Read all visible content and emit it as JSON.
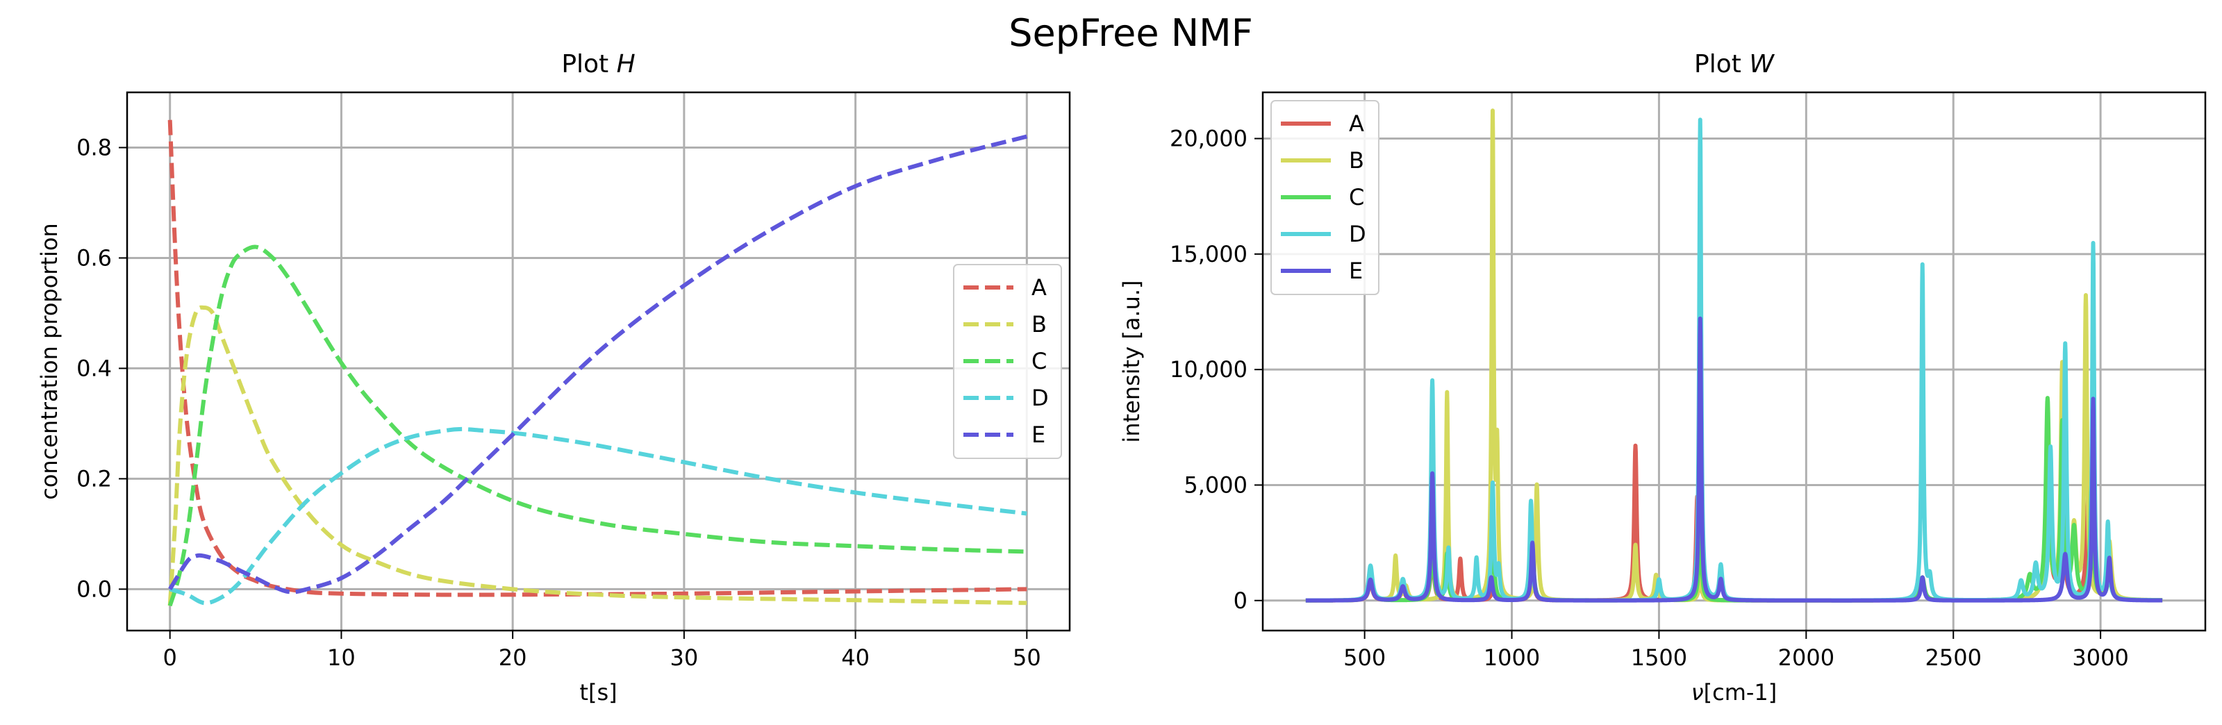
{
  "suptitle": "SepFree NMF",
  "colors": {
    "A": "#db5e56",
    "B": "#d4d95c",
    "C": "#56db5e",
    "D": "#56d3db",
    "E": "#5e56db",
    "grid": "#b0b0b0",
    "axis": "#000000"
  },
  "chart_data": [
    {
      "type": "line",
      "title_prefix": "Plot ",
      "title_var": "H",
      "xlabel": "t[s]",
      "ylabel": "concentration proportion",
      "xlim": [
        -2.5,
        52.5
      ],
      "ylim": [
        -0.075,
        0.9
      ],
      "xticks": [
        0,
        10,
        20,
        30,
        40,
        50
      ],
      "xtick_labels": [
        "0",
        "10",
        "20",
        "30",
        "40",
        "50"
      ],
      "yticks": [
        0.0,
        0.2,
        0.4,
        0.6,
        0.8
      ],
      "ytick_labels": [
        "0.0",
        "0.2",
        "0.4",
        "0.6",
        "0.8"
      ],
      "grid": true,
      "line_style": "dashed",
      "legend_position": "center-right",
      "series": [
        {
          "name": "A",
          "x": [
            0,
            0.3,
            0.6,
            1,
            1.5,
            2,
            3,
            4,
            5,
            6,
            8,
            10,
            15,
            20,
            30,
            40,
            50
          ],
          "values": [
            0.85,
            0.62,
            0.45,
            0.3,
            0.19,
            0.12,
            0.06,
            0.03,
            0.015,
            0.005,
            -0.005,
            -0.008,
            -0.01,
            -0.01,
            -0.008,
            -0.004,
            0.0
          ]
        },
        {
          "name": "B",
          "x": [
            0,
            0.3,
            0.6,
            1,
            1.5,
            2,
            2.5,
            3,
            4,
            5,
            6,
            8,
            10,
            12,
            15,
            20,
            25,
            30,
            40,
            50
          ],
          "values": [
            -0.03,
            0.12,
            0.3,
            0.43,
            0.5,
            0.51,
            0.5,
            0.46,
            0.38,
            0.3,
            0.23,
            0.14,
            0.08,
            0.05,
            0.02,
            0.0,
            -0.01,
            -0.015,
            -0.02,
            -0.025
          ]
        },
        {
          "name": "C",
          "x": [
            0,
            0.5,
            1,
            1.5,
            2,
            2.5,
            3,
            3.5,
            4,
            5,
            6,
            7,
            8,
            10,
            12,
            15,
            20,
            25,
            30,
            35,
            40,
            45,
            50
          ],
          "values": [
            -0.03,
            0.02,
            0.1,
            0.22,
            0.35,
            0.45,
            0.53,
            0.58,
            0.605,
            0.62,
            0.6,
            0.56,
            0.51,
            0.41,
            0.33,
            0.24,
            0.16,
            0.12,
            0.1,
            0.085,
            0.078,
            0.072,
            0.068
          ]
        },
        {
          "name": "D",
          "x": [
            0,
            1,
            2,
            3,
            4,
            5,
            6,
            8,
            10,
            12,
            14,
            16,
            17,
            18,
            20,
            22,
            25,
            30,
            35,
            40,
            45,
            50
          ],
          "values": [
            0.0,
            -0.01,
            -0.025,
            -0.015,
            0.01,
            0.05,
            0.09,
            0.16,
            0.21,
            0.25,
            0.275,
            0.287,
            0.29,
            0.288,
            0.283,
            0.275,
            0.26,
            0.23,
            0.2,
            0.175,
            0.155,
            0.137
          ]
        },
        {
          "name": "E",
          "x": [
            0,
            1,
            1.5,
            2,
            3,
            4,
            5,
            6,
            7,
            8,
            10,
            12,
            14,
            16,
            18,
            20,
            25,
            30,
            35,
            40,
            45,
            50
          ],
          "values": [
            0.0,
            0.05,
            0.06,
            0.06,
            0.05,
            0.035,
            0.02,
            0.005,
            -0.005,
            0.0,
            0.02,
            0.06,
            0.11,
            0.16,
            0.22,
            0.28,
            0.43,
            0.55,
            0.65,
            0.73,
            0.78,
            0.82
          ]
        }
      ]
    },
    {
      "type": "line",
      "title_prefix": "Plot ",
      "title_var": "W",
      "xlabel_var": "ν",
      "xlabel": "[cm-1]",
      "ylabel": "intensity [a.u.]",
      "xlim": [
        154,
        3356
      ],
      "ylim": [
        -1300,
        22000
      ],
      "xticks": [
        500,
        1000,
        1500,
        2000,
        2500,
        3000
      ],
      "xtick_labels": [
        "500",
        "1000",
        "1500",
        "2000",
        "2500",
        "3000"
      ],
      "yticks": [
        0,
        5000,
        10000,
        15000,
        20000
      ],
      "ytick_labels": [
        "0",
        "5,000",
        "10,000",
        "15,000",
        "20,000"
      ],
      "grid": true,
      "line_style": "solid",
      "legend_position": "upper-left",
      "x_range": [
        300,
        3210
      ],
      "series": [
        {
          "name": "A",
          "peaks": [
            [
              520,
              800,
              8
            ],
            [
              630,
              500,
              8
            ],
            [
              730,
              2200,
              6
            ],
            [
              825,
              1800,
              5
            ],
            [
              940,
              1000,
              6
            ],
            [
              1070,
              1500,
              6
            ],
            [
              1420,
              6700,
              5
            ],
            [
              1630,
              4500,
              5
            ],
            [
              2395,
              800,
              8
            ],
            [
              2820,
              4500,
              10
            ],
            [
              2870,
              3500,
              8
            ],
            [
              2960,
              5000,
              8
            ],
            [
              3030,
              1200,
              8
            ]
          ]
        },
        {
          "name": "B",
          "peaks": [
            [
              520,
              1200,
              8
            ],
            [
              605,
              1900,
              5
            ],
            [
              640,
              600,
              8
            ],
            [
              780,
              9000,
              4
            ],
            [
              935,
              20800,
              4
            ],
            [
              950,
              6000,
              4
            ],
            [
              1085,
              5000,
              5
            ],
            [
              1420,
              2400,
              5
            ],
            [
              1490,
              1100,
              6
            ],
            [
              1640,
              1200,
              5
            ],
            [
              2395,
              800,
              8
            ],
            [
              2820,
              4000,
              10
            ],
            [
              2870,
              10000,
              6
            ],
            [
              2910,
              3000,
              8
            ],
            [
              2950,
              13000,
              5
            ],
            [
              3030,
              2500,
              8
            ]
          ]
        },
        {
          "name": "C",
          "peaks": [
            [
              520,
              1000,
              8
            ],
            [
              730,
              2500,
              6
            ],
            [
              780,
              2000,
              5
            ],
            [
              935,
              3500,
              5
            ],
            [
              1070,
              2200,
              6
            ],
            [
              1500,
              700,
              8
            ],
            [
              1640,
              3500,
              5
            ],
            [
              2395,
              1000,
              8
            ],
            [
              2760,
              1000,
              10
            ],
            [
              2820,
              8600,
              7
            ],
            [
              2870,
              7500,
              6
            ],
            [
              2910,
              3000,
              8
            ],
            [
              2970,
              5000,
              6
            ],
            [
              3030,
              1000,
              8
            ]
          ]
        },
        {
          "name": "D",
          "peaks": [
            [
              520,
              1500,
              8
            ],
            [
              630,
              900,
              8
            ],
            [
              730,
              9500,
              5
            ],
            [
              785,
              2200,
              5
            ],
            [
              880,
              1800,
              5
            ],
            [
              935,
              5000,
              5
            ],
            [
              955,
              1300,
              5
            ],
            [
              1065,
              4300,
              5
            ],
            [
              1500,
              900,
              6
            ],
            [
              1640,
              20800,
              4
            ],
            [
              1710,
              1500,
              6
            ],
            [
              2395,
              14500,
              4
            ],
            [
              2420,
              900,
              6
            ],
            [
              2730,
              800,
              8
            ],
            [
              2780,
              1500,
              8
            ],
            [
              2830,
              6500,
              6
            ],
            [
              2880,
              11000,
              5
            ],
            [
              2975,
              15400,
              4
            ],
            [
              3025,
              3300,
              5
            ]
          ]
        },
        {
          "name": "E",
          "peaks": [
            [
              520,
              900,
              8
            ],
            [
              630,
              600,
              8
            ],
            [
              730,
              5500,
              5
            ],
            [
              930,
              1000,
              6
            ],
            [
              1070,
              2500,
              5
            ],
            [
              1640,
              12200,
              4
            ],
            [
              1710,
              900,
              6
            ],
            [
              2395,
              1000,
              6
            ],
            [
              2880,
              2000,
              8
            ],
            [
              2975,
              8700,
              4
            ],
            [
              3030,
              1800,
              6
            ]
          ]
        }
      ]
    }
  ]
}
